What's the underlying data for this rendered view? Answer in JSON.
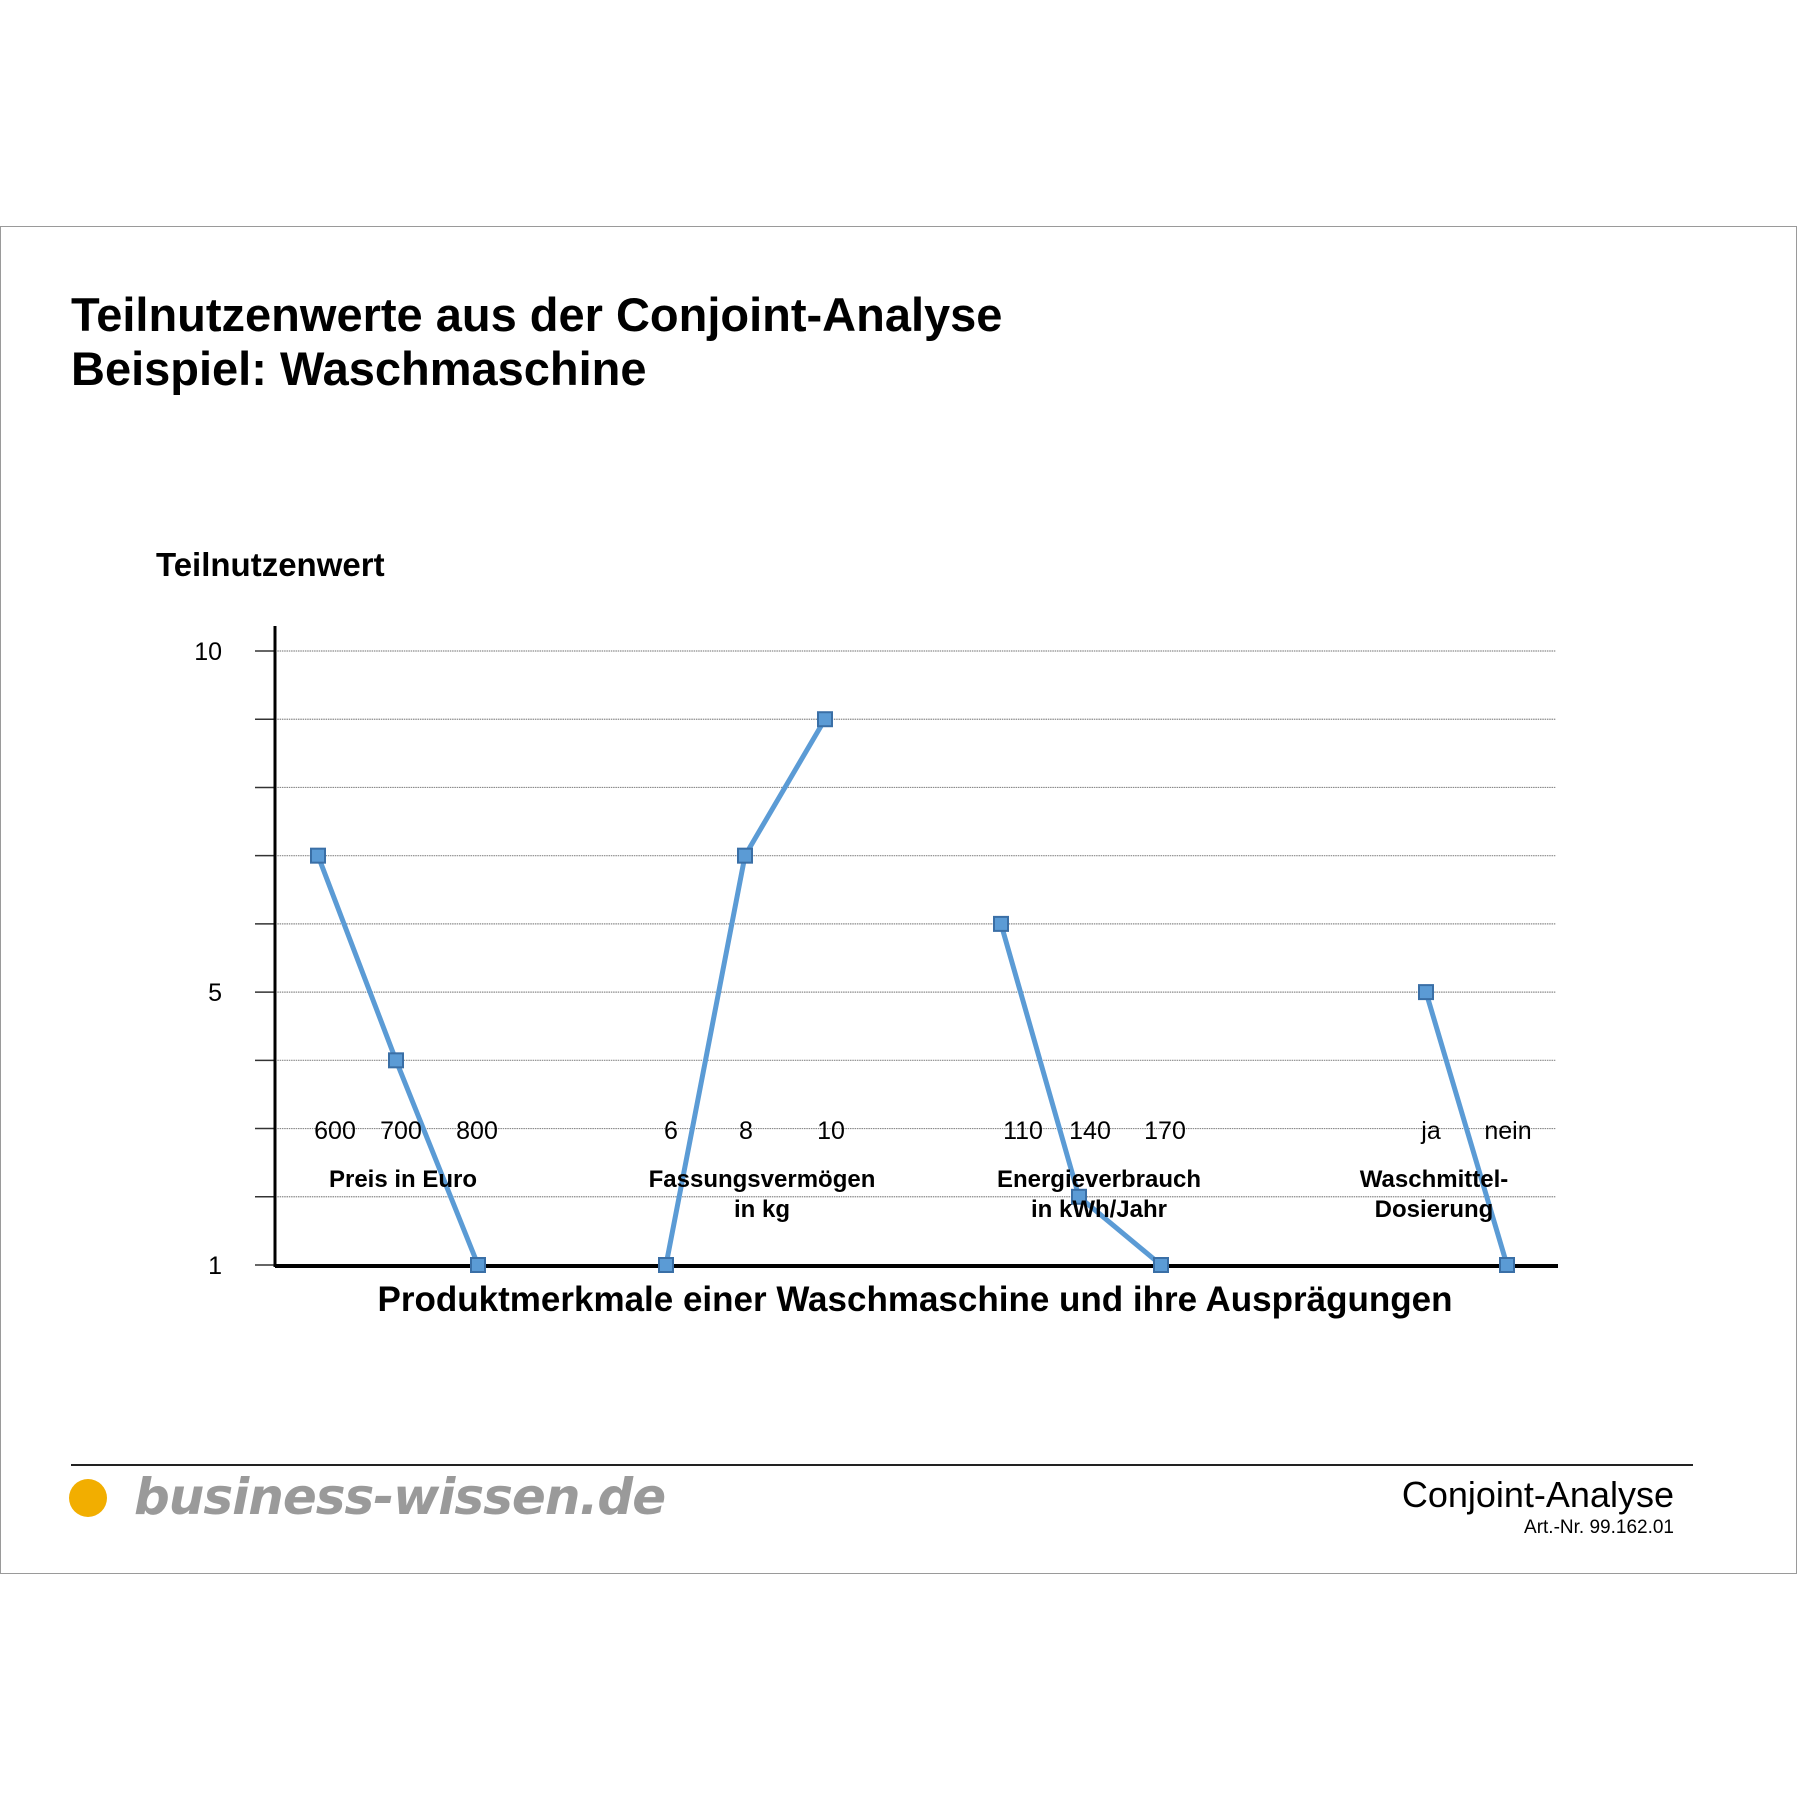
{
  "title_line1": "Teilnutzenwerte aus der Conjoint-Analyse",
  "title_line2": "Beispiel: Waschmaschine",
  "footer": {
    "logo": "business-wissen.de",
    "logo_dot_color": "#f2ae00",
    "doc_title": "Conjoint-Analyse",
    "article_number": "Art.-Nr. 99.162.01"
  },
  "chart_data": {
    "type": "line",
    "ylabel": "Teilnutzenwert",
    "xlabel": "Produktmerkmale einer Waschmaschine und ihre Ausprägungen",
    "ylim": [
      1,
      10
    ],
    "y_tick_labels": [
      "10",
      "5",
      "1"
    ],
    "grid": true,
    "line_color": "#5b9bd5",
    "marker": "square",
    "groups": [
      {
        "label_lines": [
          "Preis in Euro"
        ],
        "levels": [
          "600",
          "700",
          "800"
        ],
        "values": [
          7,
          4,
          1
        ]
      },
      {
        "label_lines": [
          "Fassungsvermögen",
          "in kg"
        ],
        "levels": [
          "6",
          "8",
          "10"
        ],
        "values": [
          1,
          7,
          9
        ]
      },
      {
        "label_lines": [
          "Energieverbrauch",
          "in kWh/Jahr"
        ],
        "levels": [
          "110",
          "140",
          "170"
        ],
        "values": [
          6,
          2,
          1
        ]
      },
      {
        "label_lines": [
          "Waschmittel-",
          "Dosierung"
        ],
        "levels": [
          "ja",
          "nein"
        ],
        "values": [
          5,
          1
        ]
      }
    ]
  }
}
